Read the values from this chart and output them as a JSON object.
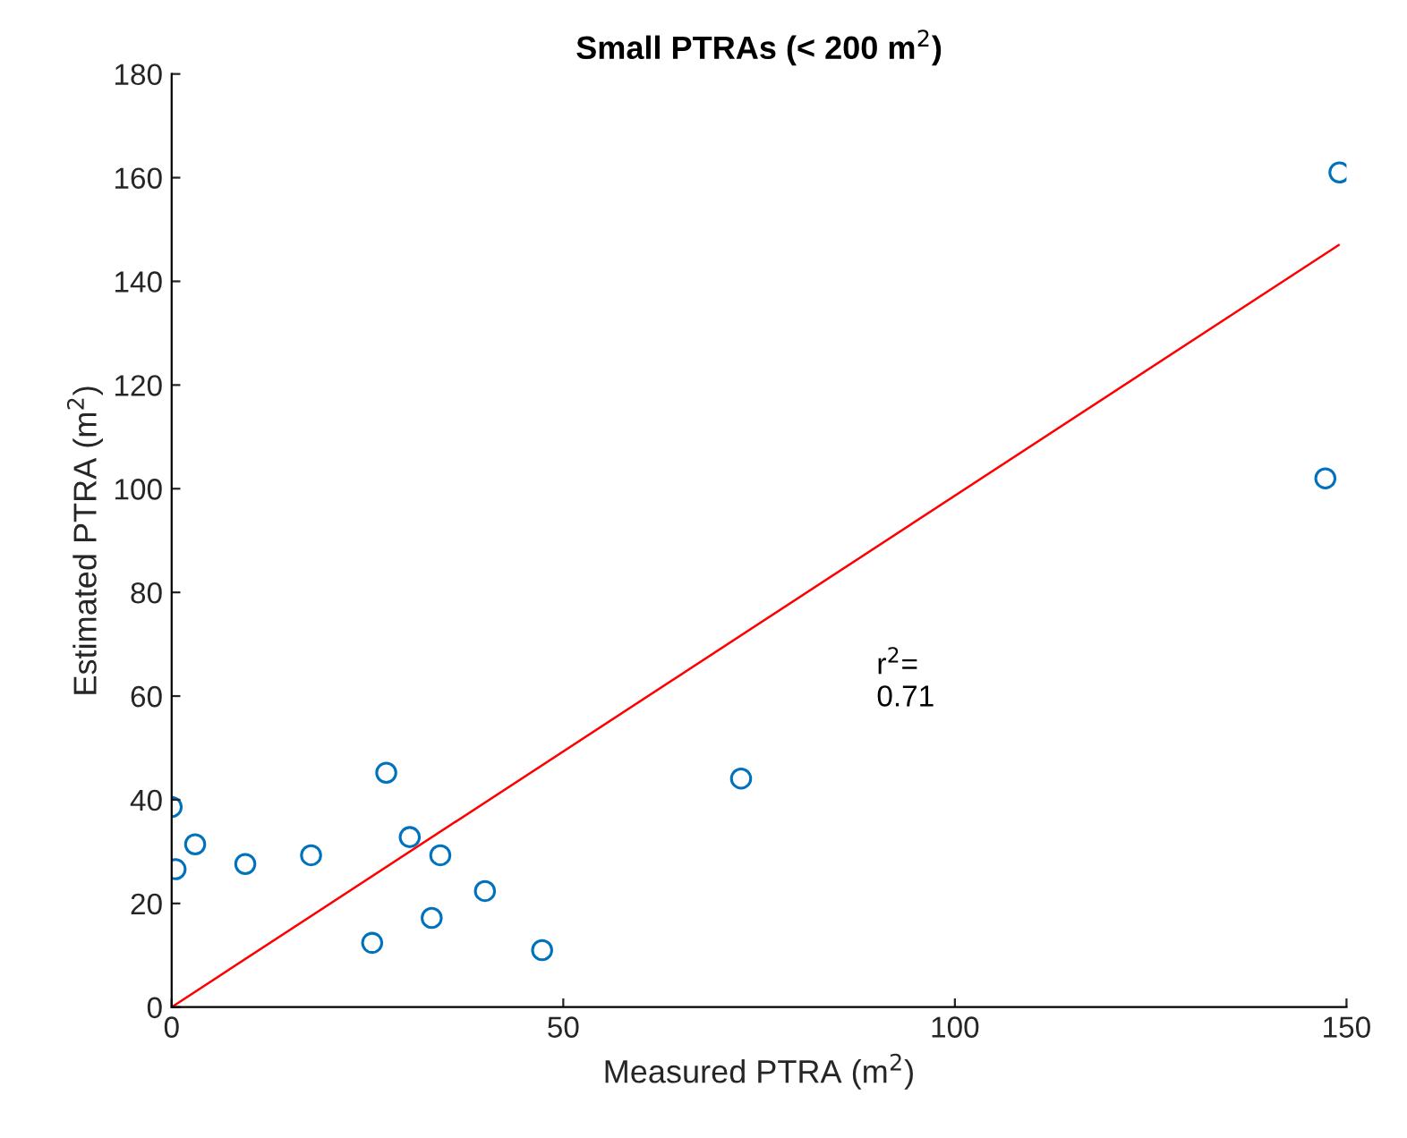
{
  "chart_data": {
    "type": "scatter",
    "title": "Small PTRAs (< 200 m$^{2}$)",
    "xlabel": "Measured PTRA (m$^{2}$)",
    "ylabel": "Estimated PTRA (m$^{2}$)",
    "annotations": [
      "r$^{2}$=\n0.71"
    ],
    "xlim": [
      0,
      150
    ],
    "ylim": [
      0,
      180
    ],
    "xticks": [
      0,
      50,
      100,
      150
    ],
    "yticks": [
      0,
      20,
      40,
      60,
      80,
      100,
      120,
      140,
      160,
      180
    ],
    "grid": false,
    "legend": false,
    "marker": "circle",
    "series": [
      {
        "color": "#0072bd",
        "x": [
          0,
          0.5,
          3,
          9.4,
          17.8,
          25.6,
          27.4,
          30.4,
          33.2,
          34.3,
          40,
          47.3,
          72.7,
          147.3,
          149.1
        ],
        "values": [
          38.6,
          26.6,
          31.4,
          27.6,
          29.3,
          12.4,
          45.2,
          32.8,
          17.2,
          29.3,
          22.4,
          11,
          44.1,
          102,
          161
        ]
      },
      {
        "type": "line",
        "color": "#ff0000",
        "x": [
          0,
          149
        ],
        "values": [
          0,
          147
        ],
        "marker": "none",
        "line_style": "solid"
      }
    ]
  }
}
